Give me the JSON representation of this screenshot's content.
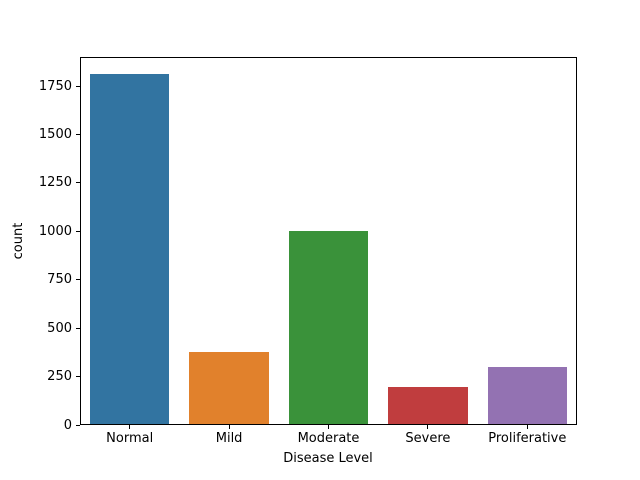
{
  "figure": {
    "background": "#ffffff",
    "text_color": "#000000",
    "spine_color": "#000000"
  },
  "chart_data": {
    "type": "bar",
    "title": "",
    "xlabel": "Disease Level",
    "ylabel": "count",
    "categories": [
      "Normal",
      "Mild",
      "Moderate",
      "Severe",
      "Proliferative"
    ],
    "values": [
      1805,
      370,
      999,
      193,
      295
    ],
    "bar_colors": [
      "#3274a1",
      "#e1812c",
      "#3a923a",
      "#c03d3e",
      "#9372b2"
    ],
    "ylim": [
      0,
      1900
    ],
    "yticks": [
      0,
      250,
      500,
      750,
      1000,
      1250,
      1500,
      1750
    ],
    "bar_width_fraction": 0.8,
    "grid": false,
    "legend": "none"
  }
}
